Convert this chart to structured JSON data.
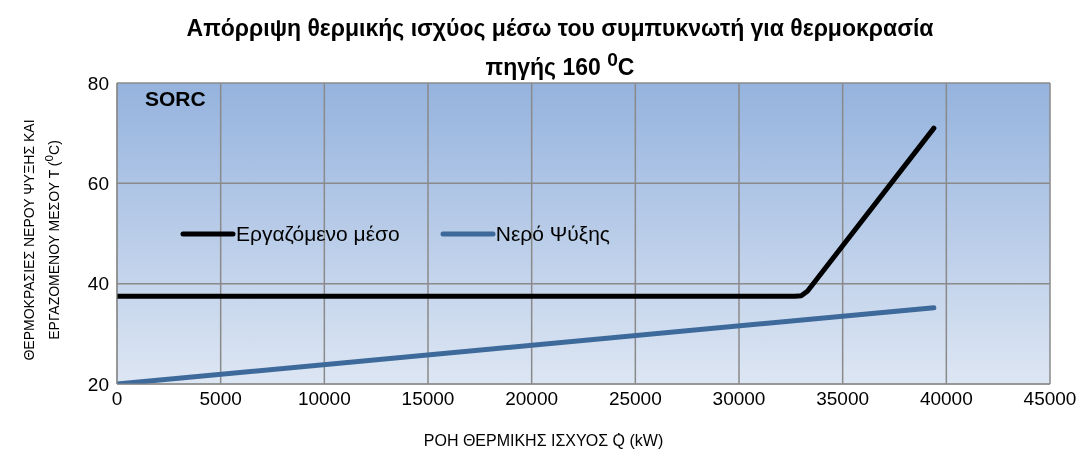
{
  "chart_data": {
    "type": "line",
    "title": "Απόρριψη θερμικής ισχύος μέσω  του συμπυκνωτή για θερμοκρασία πηγής 160 $^{0}$C",
    "xlabel": "ΡΟΗ ΘΕΡΜΙΚΗΣ ΙΣΧΥΟΣ Q̇ (kW)",
    "ylabel": "ΘΕΡΜΟΚΡΑΣΙΕΣ ΝΕΡΟΥ ΨΥΞΗΣ ΚΑΙ ΕΡΓΑΖΟΜΕΝΟΥ ΜΕΣΟΥ T ($^{0}$C)",
    "annotations": [
      "SORC"
    ],
    "series": [
      {
        "name": "Εργαζόμενο μέσο",
        "color": "#000000",
        "x": [
          0,
          32700,
          33000,
          33300,
          39400
        ],
        "values": [
          37.5,
          37.5,
          37.6,
          38.5,
          71
        ]
      },
      {
        "name": "Νερό Ψύξης",
        "color": "#3d6a9a",
        "x": [
          0,
          39400
        ],
        "values": [
          20,
          35.2
        ]
      }
    ],
    "xlim": [
      0,
      45000
    ],
    "xticks": [
      0,
      5000,
      10000,
      15000,
      20000,
      25000,
      30000,
      35000,
      40000,
      45000
    ],
    "ylim": [
      20,
      80
    ],
    "yticks": [
      20,
      40,
      60,
      80
    ],
    "grid": true,
    "legend": "left",
    "marker": "none",
    "line_style": "solid"
  }
}
